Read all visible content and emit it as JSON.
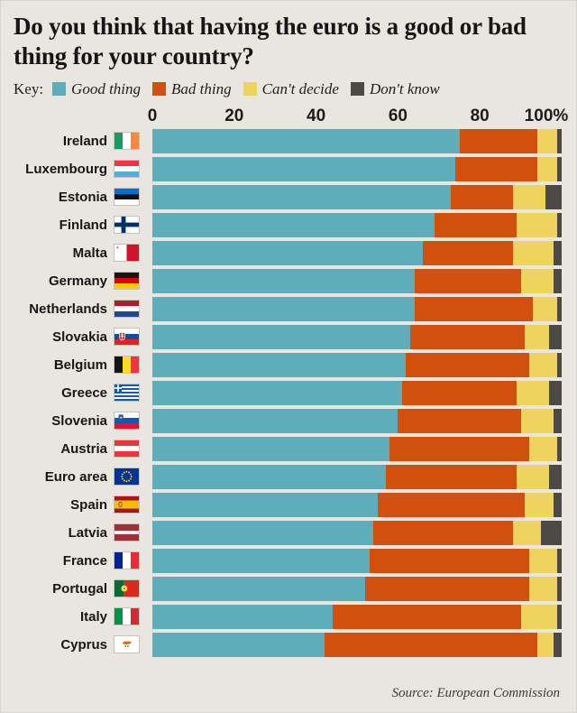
{
  "title": "Do you think that having the euro is a good or bad thing for your country?",
  "legend": {
    "key_label": "Key:",
    "items": [
      {
        "label": "Good thing",
        "color": "#5fadba"
      },
      {
        "label": "Bad thing",
        "color": "#d2500e"
      },
      {
        "label": "Can't decide",
        "color": "#eed45f"
      },
      {
        "label": "Don't know",
        "color": "#4c4a47"
      }
    ]
  },
  "axis": {
    "ticks": [
      "0",
      "20",
      "40",
      "60",
      "80",
      "100%"
    ]
  },
  "source": "Source: European Commission",
  "chart_data": {
    "type": "bar",
    "orientation": "horizontal",
    "stacked": true,
    "xlim": [
      0,
      100
    ],
    "xticks": [
      0,
      20,
      40,
      60,
      80,
      100
    ],
    "grid": false,
    "legend_position": "top",
    "categories": [
      "Ireland",
      "Luxembourg",
      "Estonia",
      "Finland",
      "Malta",
      "Germany",
      "Netherlands",
      "Slovakia",
      "Belgium",
      "Greece",
      "Slovenia",
      "Austria",
      "Euro area",
      "Spain",
      "Latvia",
      "France",
      "Portugal",
      "Italy",
      "Cyprus"
    ],
    "flags": [
      "ireland",
      "luxembourg",
      "estonia",
      "finland",
      "malta",
      "germany",
      "netherlands",
      "slovakia",
      "belgium",
      "greece",
      "slovenia",
      "austria",
      "euro-area",
      "spain",
      "latvia",
      "france",
      "portugal",
      "italy",
      "cyprus"
    ],
    "series": [
      {
        "name": "Good thing",
        "values": [
          75,
          74,
          73,
          69,
          66,
          64,
          64,
          63,
          62,
          61,
          60,
          58,
          57,
          55,
          54,
          53,
          52,
          44,
          42
        ]
      },
      {
        "name": "Bad thing",
        "values": [
          19,
          20,
          15,
          20,
          22,
          26,
          29,
          28,
          30,
          28,
          30,
          34,
          32,
          36,
          34,
          39,
          40,
          46,
          52
        ]
      },
      {
        "name": "Can't decide",
        "values": [
          5,
          5,
          8,
          10,
          10,
          8,
          6,
          6,
          7,
          8,
          8,
          7,
          8,
          7,
          7,
          7,
          7,
          9,
          4
        ]
      },
      {
        "name": "Don't know",
        "values": [
          1,
          1,
          4,
          1,
          2,
          2,
          1,
          3,
          1,
          3,
          2,
          1,
          3,
          2,
          5,
          1,
          1,
          1,
          2
        ]
      }
    ]
  }
}
